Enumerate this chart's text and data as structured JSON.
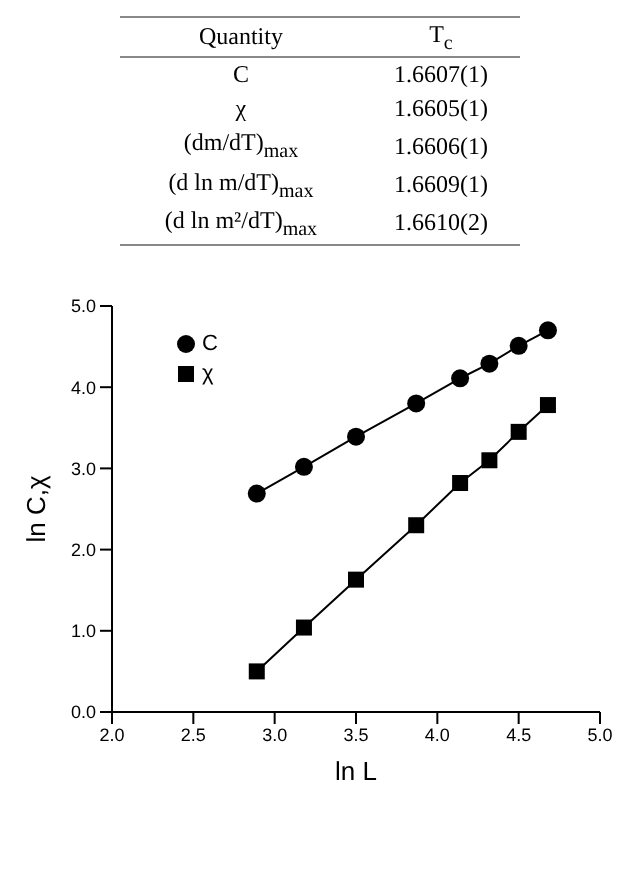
{
  "chart_data": {
    "type": "line",
    "annotations": [
      "Quantity",
      "T$_{c}$",
      "C",
      "1.6607(1)",
      "χ",
      "1.6605(1)",
      "(dm/dT)$_{max}$",
      "1.6606(1)",
      "(d ln m/dT)$_{max}$",
      "1.6609(1)",
      "(d ln m²/dT)$_{max}$",
      "1.6610(2)"
    ],
    "xlabel": "ln L",
    "ylabel": "ln C,χ",
    "x": [
      2.89,
      3.18,
      3.5,
      3.87,
      4.14,
      4.32,
      4.5,
      4.68
    ],
    "series": [
      {
        "name": "C",
        "color": "#000000",
        "marker": "circle",
        "values": [
          2.69,
          3.02,
          3.39,
          3.8,
          4.11,
          4.29,
          4.51,
          4.7
        ]
      },
      {
        "name": "χ",
        "color": "#000000",
        "marker": "square",
        "values": [
          0.5,
          1.04,
          1.63,
          2.3,
          2.82,
          3.1,
          3.45,
          3.78
        ]
      }
    ],
    "xlim": [
      2.0,
      5.0
    ],
    "xticks": [
      {
        "value": 2,
        "label": "2.0"
      },
      {
        "value": 2.5,
        "label": "2.5"
      },
      {
        "value": 3,
        "label": "3.0"
      },
      {
        "value": 3.5,
        "label": "3.5"
      },
      {
        "value": 4,
        "label": "4.0"
      },
      {
        "value": 4.5,
        "label": "4.5"
      },
      {
        "value": 5,
        "label": "5.0"
      }
    ],
    "ylim": [
      0.0,
      5.0
    ],
    "yticks": [
      {
        "value": 0,
        "label": "0.0"
      },
      {
        "value": 1,
        "label": "1.0"
      },
      {
        "value": 2,
        "label": "2.0"
      },
      {
        "value": 3,
        "label": "3.0"
      },
      {
        "value": 4,
        "label": "4.0"
      },
      {
        "value": 5,
        "label": "5.0"
      }
    ],
    "legend": "top left",
    "line_style": "solid"
  }
}
